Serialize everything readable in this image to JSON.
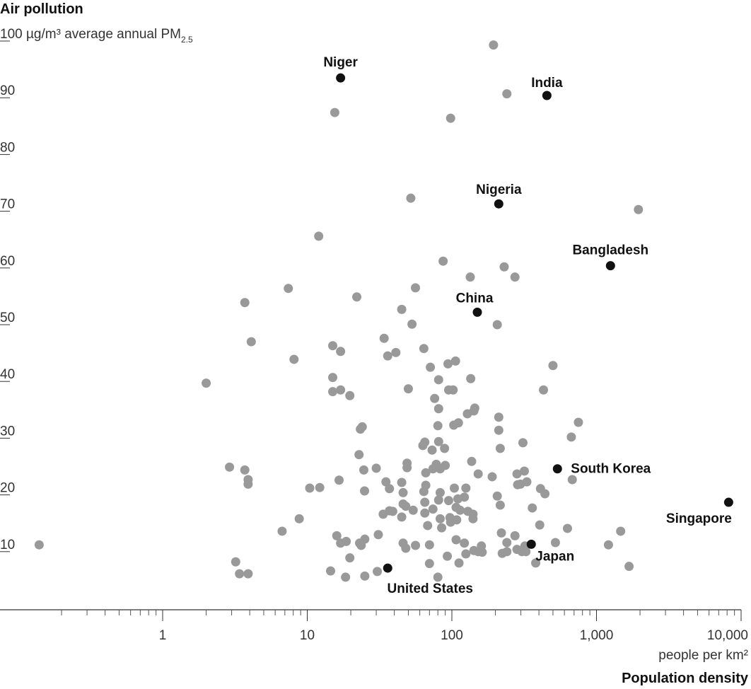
{
  "chart_data": {
    "type": "scatter",
    "title": "Air pollution",
    "ylabel": "average annual PM",
    "ylabel_unit": "µg/m³",
    "ylabel_subscript": "2.5",
    "xlabel": "Population density",
    "xlabel_unit": "people per km²",
    "x_scale": "log",
    "xlim": [
      0.1,
      10000
    ],
    "ylim": [
      -1.7,
      100
    ],
    "x_ticks": [
      1,
      10,
      100,
      1000,
      10000
    ],
    "x_tick_labels": [
      "1",
      "10",
      "100",
      "1,000",
      "10,000"
    ],
    "y_ticks": [
      100,
      90,
      80,
      70,
      60,
      50,
      40,
      30,
      20,
      10
    ],
    "y_tick_labels": [
      "100",
      "90",
      "80",
      "70",
      "60",
      "50",
      "40",
      "30",
      "20",
      "10"
    ],
    "grid": false,
    "colors": {
      "other": "#999999",
      "highlight": "#111111"
    },
    "highlighted": [
      {
        "label": "Niger",
        "x": 17,
        "y": 92.0
      },
      {
        "label": "India",
        "x": 454,
        "y": 88.9
      },
      {
        "label": "Nigeria",
        "x": 211,
        "y": 69.8
      },
      {
        "label": "Bangladesh",
        "x": 1250,
        "y": 58.9
      },
      {
        "label": "China",
        "x": 150,
        "y": 50.7
      },
      {
        "label": "South Korea",
        "x": 537,
        "y": 23.1
      },
      {
        "label": "Singapore",
        "x": 8200,
        "y": 17.2
      },
      {
        "label": "Japan",
        "x": 354,
        "y": 9.8
      },
      {
        "label": "United States",
        "x": 36,
        "y": 5.6
      }
    ],
    "points": [
      [
        0.14,
        9.7
      ],
      [
        2.0,
        38.2
      ],
      [
        2.9,
        23.4
      ],
      [
        3.7,
        22.9
      ],
      [
        3.9,
        21.2
      ],
      [
        3.9,
        20.4
      ],
      [
        3.7,
        52.4
      ],
      [
        4.1,
        45.5
      ],
      [
        3.2,
        6.7
      ],
      [
        3.4,
        4.6
      ],
      [
        3.9,
        4.6
      ],
      [
        6.7,
        12.1
      ],
      [
        7.4,
        54.9
      ],
      [
        8.1,
        42.4
      ],
      [
        8.8,
        14.3
      ],
      [
        10.4,
        19.7
      ],
      [
        12.2,
        19.8
      ],
      [
        12,
        64.1
      ],
      [
        15.5,
        85.9
      ],
      [
        15,
        44.8
      ],
      [
        15,
        39.2
      ],
      [
        15,
        36.7
      ],
      [
        17,
        43.8
      ],
      [
        17,
        37.0
      ],
      [
        16.6,
        21.1
      ],
      [
        19.7,
        36.0
      ],
      [
        14.5,
        5.1
      ],
      [
        16,
        11.3
      ],
      [
        17,
        10.0
      ],
      [
        18.6,
        10.3
      ],
      [
        18.4,
        4.0
      ],
      [
        19.7,
        7.4
      ],
      [
        22,
        53.4
      ],
      [
        22.8,
        25.6
      ],
      [
        23.3,
        30.1
      ],
      [
        24,
        30.5
      ],
      [
        24.6,
        22.9
      ],
      [
        24.9,
        19.2
      ],
      [
        23,
        10.0
      ],
      [
        23.6,
        9.6
      ],
      [
        25,
        10.7
      ],
      [
        25,
        4.2
      ],
      [
        30,
        23.2
      ],
      [
        31,
        11.5
      ],
      [
        30.5,
        5.0
      ],
      [
        34,
        46.1
      ],
      [
        33.5,
        15.1
      ],
      [
        35,
        20.8
      ],
      [
        36,
        43.0
      ],
      [
        37,
        19.6
      ],
      [
        37,
        15.7
      ],
      [
        41,
        43.6
      ],
      [
        39,
        15.6
      ],
      [
        45,
        51.2
      ],
      [
        45,
        20.7
      ],
      [
        46,
        18.9
      ],
      [
        46,
        16.9
      ],
      [
        45,
        14.6
      ],
      [
        46,
        10.0
      ],
      [
        48,
        16.5
      ],
      [
        49,
        23.3
      ],
      [
        49,
        24.1
      ],
      [
        48,
        9.1
      ],
      [
        50,
        37.2
      ],
      [
        53,
        48.6
      ],
      [
        52,
        70.8
      ],
      [
        54,
        15.8
      ],
      [
        56,
        55.0
      ],
      [
        56,
        9.6
      ],
      [
        64,
        44.3
      ],
      [
        63,
        27.2
      ],
      [
        65,
        27.8
      ],
      [
        66,
        22.4
      ],
      [
        66,
        20.2
      ],
      [
        64,
        19.1
      ],
      [
        65,
        17.2
      ],
      [
        65,
        15.3
      ],
      [
        68,
        13.1
      ],
      [
        70,
        9.7
      ],
      [
        70,
        6.4
      ],
      [
        71,
        41.0
      ],
      [
        73,
        26.4
      ],
      [
        74,
        23.1
      ],
      [
        76,
        35.5
      ],
      [
        74,
        16.0
      ],
      [
        78,
        23.9
      ],
      [
        80,
        30.7
      ],
      [
        81,
        38.8
      ],
      [
        81,
        33.7
      ],
      [
        81,
        27.9
      ],
      [
        83,
        23.1
      ],
      [
        81,
        17.6
      ],
      [
        83,
        18.9
      ],
      [
        83,
        14.3
      ],
      [
        85,
        12.7
      ],
      [
        80,
        4.0
      ],
      [
        87,
        59.7
      ],
      [
        89,
        26.7
      ],
      [
        90,
        23.7
      ],
      [
        93,
        7.7
      ],
      [
        94,
        41.6
      ],
      [
        95,
        17.5
      ],
      [
        95,
        37.0
      ],
      [
        98,
        84.9
      ],
      [
        102,
        37.0
      ],
      [
        97,
        14.5
      ],
      [
        98,
        13.7
      ],
      [
        103,
        30.8
      ],
      [
        106,
        42.1
      ],
      [
        104,
        19.7
      ],
      [
        107,
        16.3
      ],
      [
        108,
        14.1
      ],
      [
        107,
        10.6
      ],
      [
        111,
        31.2
      ],
      [
        110,
        17.8
      ],
      [
        112,
        6.5
      ],
      [
        114,
        15.8
      ],
      [
        122,
        18.1
      ],
      [
        122,
        10.0
      ],
      [
        125,
        19.7
      ],
      [
        125,
        8.1
      ],
      [
        128,
        32.8
      ],
      [
        129,
        15.6
      ],
      [
        134,
        56.9
      ],
      [
        135,
        39.0
      ],
      [
        137,
        24.4
      ],
      [
        140,
        14.3
      ],
      [
        142,
        8.7
      ],
      [
        142,
        33.3
      ],
      [
        144,
        33.8
      ],
      [
        140,
        15.1
      ],
      [
        152,
        22.2
      ],
      [
        152,
        8.5
      ],
      [
        160,
        9.5
      ],
      [
        162,
        8.4
      ],
      [
        190,
        21.7
      ],
      [
        194,
        97.8
      ],
      [
        206,
        48.5
      ],
      [
        211,
        32.2
      ],
      [
        211,
        29.9
      ],
      [
        206,
        18.3
      ],
      [
        216,
        26.7
      ],
      [
        216,
        16.7
      ],
      [
        220,
        11.8
      ],
      [
        223,
        8.2
      ],
      [
        230,
        58.7
      ],
      [
        240,
        89.2
      ],
      [
        240,
        10.1
      ],
      [
        240,
        8.5
      ],
      [
        273,
        56.9
      ],
      [
        273,
        11.3
      ],
      [
        282,
        8.9
      ],
      [
        282,
        22.2
      ],
      [
        285,
        20.3
      ],
      [
        298,
        20.4
      ],
      [
        305,
        8.5
      ],
      [
        310,
        27.7
      ],
      [
        317,
        22.7
      ],
      [
        320,
        9.5
      ],
      [
        325,
        8.5
      ],
      [
        330,
        20.8
      ],
      [
        360,
        16.2
      ],
      [
        380,
        6.5
      ],
      [
        405,
        13.2
      ],
      [
        410,
        19.6
      ],
      [
        430,
        37.0
      ],
      [
        440,
        18.7
      ],
      [
        500,
        41.3
      ],
      [
        520,
        10.1
      ],
      [
        630,
        12.6
      ],
      [
        670,
        28.7
      ],
      [
        680,
        21.2
      ],
      [
        750,
        31.3
      ],
      [
        1210,
        9.7
      ],
      [
        1470,
        12.1
      ],
      [
        1680,
        5.9
      ],
      [
        1950,
        68.8
      ]
    ]
  }
}
